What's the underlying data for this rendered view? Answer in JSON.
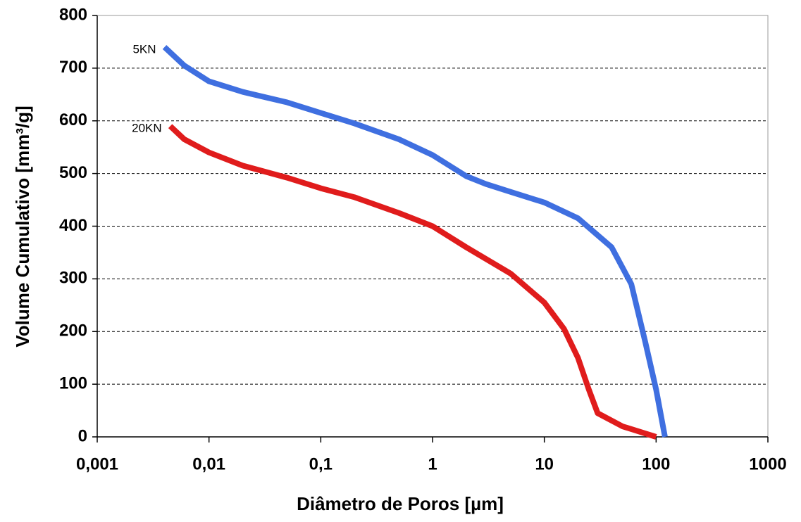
{
  "chart_data": {
    "type": "line",
    "xlabel": "Diâmetro de Poros [µm]",
    "ylabel": "Volume Cumulativo [mm³/g]",
    "xscale": "log",
    "xlim": [
      0.001,
      1000
    ],
    "xticks": [
      {
        "value": 0.001,
        "label": "0,001"
      },
      {
        "value": 0.01,
        "label": "0,01"
      },
      {
        "value": 0.1,
        "label": "0,1"
      },
      1,
      10,
      100,
      1000
    ],
    "ylim": [
      0,
      800
    ],
    "yticks": [
      0,
      100,
      200,
      300,
      400,
      500,
      600,
      700,
      800
    ],
    "grid": true,
    "series": [
      {
        "name": "5KN",
        "color": "#3f6fe0",
        "x": [
          0.004,
          0.006,
          0.01,
          0.02,
          0.05,
          0.1,
          0.2,
          0.5,
          1,
          2,
          3,
          5,
          10,
          20,
          40,
          60,
          80,
          100,
          120
        ],
        "values": [
          740,
          705,
          675,
          655,
          635,
          615,
          595,
          565,
          535,
          495,
          480,
          465,
          445,
          415,
          360,
          290,
          180,
          90,
          0
        ]
      },
      {
        "name": "20KN",
        "color": "#e01c1c",
        "x": [
          0.0045,
          0.006,
          0.01,
          0.02,
          0.05,
          0.1,
          0.2,
          0.5,
          1,
          2,
          5,
          10,
          15,
          20,
          25,
          30,
          50,
          100
        ],
        "values": [
          590,
          565,
          540,
          515,
          492,
          472,
          455,
          425,
          400,
          360,
          310,
          255,
          205,
          150,
          90,
          45,
          20,
          0
        ]
      }
    ]
  }
}
